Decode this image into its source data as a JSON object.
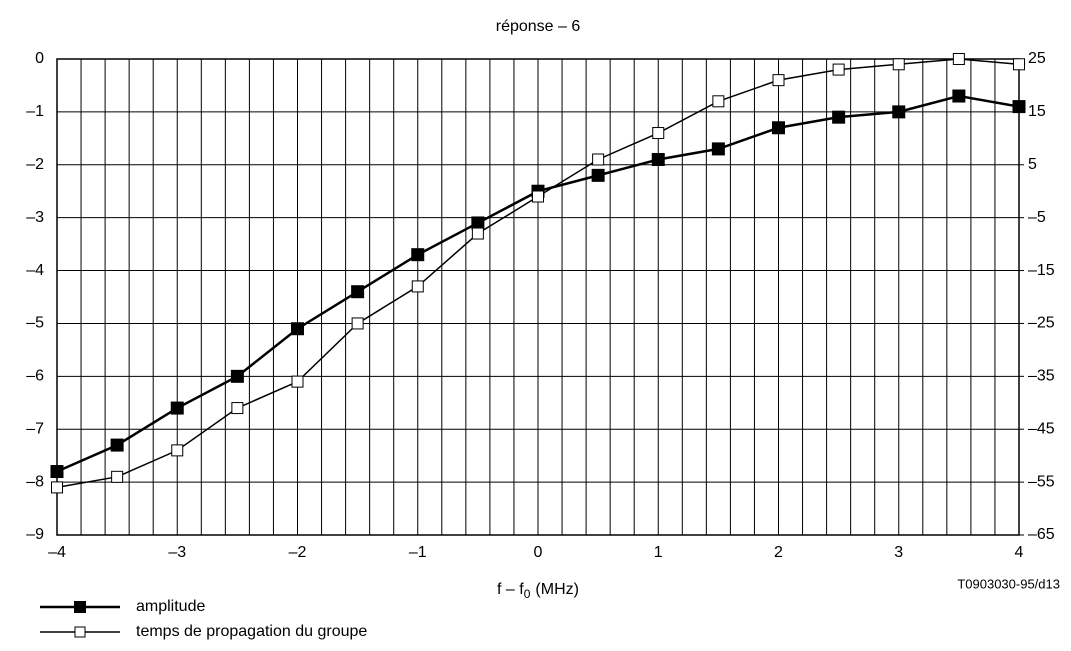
{
  "chart_data": {
    "type": "line",
    "title": "réponse – 6",
    "xlabel": [
      "f – f",
      "0",
      "(MHz)"
    ],
    "note": "T0903030-95/d13",
    "x": [
      -4,
      -3.5,
      -3,
      -2.5,
      -2,
      -1.5,
      -1,
      -0.5,
      0,
      0.5,
      1,
      1.5,
      2,
      2.5,
      3,
      3.5,
      4
    ],
    "series": [
      {
        "name": "amplitude",
        "color": "#000000",
        "marker": "filled",
        "axis": "y",
        "values": [
          -7.8,
          -7.3,
          -6.6,
          -6.0,
          -5.1,
          -4.4,
          -3.7,
          -3.1,
          -2.5,
          -2.2,
          -1.9,
          -1.7,
          -1.3,
          -1.1,
          -1.0,
          -0.7,
          -0.9
        ]
      },
      {
        "name": "temps de propagation du groupe",
        "color": "#000000",
        "marker": "hollow",
        "axis": "y2",
        "values": [
          -56,
          -54,
          -49,
          -41,
          -36,
          -25,
          -18,
          -8,
          -1,
          6,
          11,
          17,
          21,
          23,
          24,
          25,
          24
        ]
      }
    ],
    "xlim": [
      -4,
      4
    ],
    "xticks": [
      {
        "value": -4,
        "label": "–4"
      },
      {
        "value": -3,
        "label": "–3"
      },
      {
        "value": -2,
        "label": "–2"
      },
      {
        "value": -1,
        "label": "–1"
      },
      0,
      1,
      2,
      3,
      4
    ],
    "x_grid_ticks": [
      -3.8,
      -3.6,
      -3.4,
      -3.2,
      -2.8,
      -2.6,
      -2.4,
      -2.2,
      -1.8,
      -1.6,
      -1.4,
      -1.2,
      -0.8,
      -0.6,
      -0.4,
      -0.2,
      0.2,
      0.4,
      0.6,
      0.8,
      1.2,
      1.4,
      1.6,
      1.8,
      2.2,
      2.4,
      2.6,
      2.8,
      3.2,
      3.4,
      3.6,
      3.8
    ],
    "ylim": [
      -9,
      0
    ],
    "yticks": [
      0,
      {
        "value": -1,
        "label": "–1"
      },
      {
        "value": -2,
        "label": "–2"
      },
      {
        "value": -3,
        "label": "–3"
      },
      {
        "value": -4,
        "label": "–4"
      },
      {
        "value": -5,
        "label": "–5"
      },
      {
        "value": -6,
        "label": "–6"
      },
      {
        "value": -7,
        "label": "–7"
      },
      {
        "value": -8,
        "label": "–8"
      },
      {
        "value": -9,
        "label": "–9"
      }
    ],
    "y2lim": [
      -65,
      25
    ],
    "y2ticks": [
      25,
      15,
      5,
      {
        "value": -5,
        "label": "–5"
      },
      {
        "value": -15,
        "label": "–15"
      },
      {
        "value": -25,
        "label": "–25"
      },
      {
        "value": -35,
        "label": "–35"
      },
      {
        "value": -45,
        "label": "–45"
      },
      {
        "value": -55,
        "label": "–55"
      },
      {
        "value": -65,
        "label": "–65"
      }
    ],
    "grid": true
  }
}
